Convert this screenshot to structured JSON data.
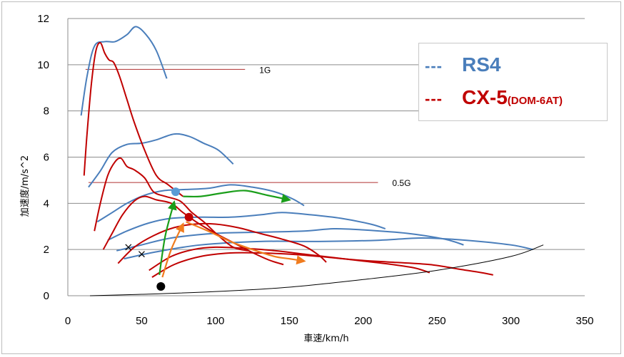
{
  "chart_data": {
    "type": "line",
    "xlabel": "車速/km/h",
    "ylabel": "加速度/m/s^2",
    "xlim": [
      0,
      350
    ],
    "ylim": [
      0,
      12
    ],
    "xticks": [
      "0",
      "50",
      "100",
      "150",
      "200",
      "250",
      "300",
      "350"
    ],
    "yticks": [
      "0",
      "2",
      "4",
      "6",
      "8",
      "10",
      "12"
    ],
    "grid": "horizontal",
    "legend_position": "top-right",
    "legend": [
      {
        "marker": "---",
        "name": "RS4",
        "sub": "",
        "color": "#4a7ebb"
      },
      {
        "marker": "---",
        "name": "CX-5",
        "sub": "(DOM-6AT)",
        "color": "#c00000"
      }
    ],
    "reference_lines": [
      {
        "label": "1G",
        "y": 9.8,
        "x": [
          12,
          120
        ]
      },
      {
        "label": "0.5G",
        "y": 4.9,
        "x": [
          14,
          210
        ]
      }
    ],
    "series": [
      {
        "group": "RS4",
        "color": "#4a7ebb",
        "points": [
          [
            9,
            7.8
          ],
          [
            13,
            9.5
          ],
          [
            18,
            10.8
          ],
          [
            25,
            11
          ],
          [
            32,
            11
          ],
          [
            40,
            11.3
          ],
          [
            46,
            11.65
          ],
          [
            53,
            11.3
          ],
          [
            60,
            10.6
          ],
          [
            67,
            9.4
          ]
        ]
      },
      {
        "group": "RS4",
        "color": "#4a7ebb",
        "points": [
          [
            14,
            4.7
          ],
          [
            22,
            5.4
          ],
          [
            30,
            6.2
          ],
          [
            40,
            6.55
          ],
          [
            50,
            6.6
          ],
          [
            60,
            6.75
          ],
          [
            72,
            7.0
          ],
          [
            82,
            6.9
          ],
          [
            92,
            6.6
          ],
          [
            102,
            6.3
          ],
          [
            112,
            5.7
          ]
        ]
      },
      {
        "group": "RS4",
        "color": "#4a7ebb",
        "points": [
          [
            20,
            3.2
          ],
          [
            30,
            3.6
          ],
          [
            40,
            4.0
          ],
          [
            52,
            4.35
          ],
          [
            65,
            4.55
          ],
          [
            80,
            4.6
          ],
          [
            95,
            4.65
          ],
          [
            110,
            4.8
          ],
          [
            125,
            4.7
          ],
          [
            140,
            4.5
          ],
          [
            152,
            4.2
          ],
          [
            160,
            3.9
          ]
        ]
      },
      {
        "group": "RS4",
        "color": "#4a7ebb",
        "points": [
          [
            27,
            2.4
          ],
          [
            40,
            2.8
          ],
          [
            55,
            3.15
          ],
          [
            70,
            3.35
          ],
          [
            90,
            3.4
          ],
          [
            110,
            3.4
          ],
          [
            130,
            3.5
          ],
          [
            145,
            3.6
          ],
          [
            165,
            3.5
          ],
          [
            185,
            3.35
          ],
          [
            205,
            3.1
          ],
          [
            215,
            2.9
          ]
        ]
      },
      {
        "group": "RS4",
        "color": "#4a7ebb",
        "points": [
          [
            33,
            1.95
          ],
          [
            50,
            2.2
          ],
          [
            70,
            2.5
          ],
          [
            100,
            2.7
          ],
          [
            130,
            2.75
          ],
          [
            160,
            2.8
          ],
          [
            180,
            2.9
          ],
          [
            200,
            2.85
          ],
          [
            230,
            2.7
          ],
          [
            255,
            2.45
          ],
          [
            268,
            2.2
          ]
        ]
      },
      {
        "group": "RS4",
        "color": "#4a7ebb",
        "points": [
          [
            38,
            1.6
          ],
          [
            60,
            1.9
          ],
          [
            90,
            2.2
          ],
          [
            130,
            2.35
          ],
          [
            170,
            2.35
          ],
          [
            210,
            2.4
          ],
          [
            240,
            2.5
          ],
          [
            270,
            2.4
          ],
          [
            300,
            2.2
          ],
          [
            315,
            2.0
          ]
        ]
      },
      {
        "group": "CX-5",
        "color": "#c00000",
        "points": [
          [
            11,
            5.2
          ],
          [
            13,
            7.0
          ],
          [
            16,
            9.2
          ],
          [
            19,
            10.6
          ],
          [
            22,
            10.95
          ],
          [
            25,
            10.5
          ],
          [
            28,
            10.2
          ],
          [
            31,
            10.1
          ],
          [
            35,
            9.5
          ],
          [
            40,
            8.5
          ],
          [
            45,
            7.5
          ],
          [
            52,
            6.3
          ],
          [
            60,
            5.2
          ],
          [
            68,
            4.8
          ],
          [
            78,
            4.3
          ]
        ]
      },
      {
        "group": "CX-5",
        "color": "#c00000",
        "points": [
          [
            18,
            2.8
          ],
          [
            22,
            4.0
          ],
          [
            27,
            5.2
          ],
          [
            32,
            5.8
          ],
          [
            36,
            5.95
          ],
          [
            40,
            5.6
          ],
          [
            45,
            5.45
          ],
          [
            52,
            5.1
          ],
          [
            58,
            4.5
          ],
          [
            66,
            4.3
          ],
          [
            76,
            4.1
          ],
          [
            84,
            3.6
          ],
          [
            92,
            3.2
          ],
          [
            102,
            2.6
          ],
          [
            112,
            2.1
          ],
          [
            122,
            1.95
          ]
        ]
      },
      {
        "group": "CX-5",
        "color": "#c00000",
        "points": [
          [
            24,
            2.0
          ],
          [
            30,
            2.7
          ],
          [
            37,
            3.5
          ],
          [
            45,
            4.1
          ],
          [
            52,
            4.3
          ],
          [
            60,
            4.15
          ],
          [
            70,
            4.0
          ],
          [
            78,
            3.6
          ],
          [
            88,
            3.15
          ],
          [
            100,
            2.7
          ],
          [
            112,
            2.3
          ],
          [
            124,
            1.9
          ],
          [
            136,
            1.55
          ],
          [
            146,
            1.35
          ]
        ]
      },
      {
        "group": "CX-5",
        "color": "#c00000",
        "points": [
          [
            34,
            1.4
          ],
          [
            45,
            2.1
          ],
          [
            58,
            2.6
          ],
          [
            72,
            2.95
          ],
          [
            86,
            3.1
          ],
          [
            100,
            3.1
          ],
          [
            115,
            2.95
          ],
          [
            130,
            2.7
          ],
          [
            145,
            2.45
          ],
          [
            160,
            2.15
          ],
          [
            170,
            1.75
          ],
          [
            175,
            1.45
          ]
        ]
      },
      {
        "group": "CX-5",
        "color": "#c00000",
        "points": [
          [
            55,
            1.1
          ],
          [
            70,
            1.7
          ],
          [
            85,
            2.0
          ],
          [
            100,
            2.1
          ],
          [
            120,
            2.05
          ],
          [
            140,
            1.95
          ],
          [
            160,
            1.8
          ],
          [
            180,
            1.65
          ],
          [
            200,
            1.5
          ],
          [
            220,
            1.35
          ],
          [
            235,
            1.2
          ],
          [
            245,
            1.0
          ]
        ]
      },
      {
        "group": "CX-5",
        "color": "#c00000",
        "points": [
          [
            57,
            0.8
          ],
          [
            72,
            1.35
          ],
          [
            90,
            1.7
          ],
          [
            110,
            1.85
          ],
          [
            130,
            1.85
          ],
          [
            150,
            1.8
          ],
          [
            170,
            1.7
          ],
          [
            195,
            1.55
          ],
          [
            220,
            1.45
          ],
          [
            245,
            1.35
          ],
          [
            265,
            1.15
          ],
          [
            280,
            1.0
          ],
          [
            288,
            0.9
          ]
        ]
      },
      {
        "group": "resistance",
        "color": "#000000",
        "points": [
          [
            15,
            0.0
          ],
          [
            50,
            0.06
          ],
          [
            100,
            0.18
          ],
          [
            150,
            0.37
          ],
          [
            200,
            0.7
          ],
          [
            250,
            1.1
          ],
          [
            300,
            1.7
          ],
          [
            322,
            2.2
          ]
        ]
      }
    ],
    "arrows": [
      {
        "color": "#1a9e1a",
        "points": [
          [
            62,
            0.9
          ],
          [
            66,
            2.6
          ],
          [
            72,
            4.05
          ]
        ]
      },
      {
        "color": "#1a9e1a",
        "points": [
          [
            78,
            4.3
          ],
          [
            90,
            4.3
          ],
          [
            105,
            4.45
          ],
          [
            120,
            4.55
          ],
          [
            135,
            4.35
          ],
          [
            150,
            4.15
          ]
        ]
      },
      {
        "color": "#f07c1e",
        "points": [
          [
            64,
            0.8
          ],
          [
            70,
            2.0
          ],
          [
            78,
            3.1
          ]
        ]
      },
      {
        "color": "#f07c1e",
        "points": [
          [
            80,
            3.2
          ],
          [
            95,
            2.8
          ],
          [
            110,
            2.35
          ],
          [
            125,
            2.0
          ],
          [
            140,
            1.7
          ],
          [
            150,
            1.6
          ],
          [
            160,
            1.5
          ]
        ]
      }
    ],
    "markers": [
      {
        "shape": "circle",
        "x": 73,
        "y": 4.5,
        "color": "#5b9bd5"
      },
      {
        "shape": "circle",
        "x": 82,
        "y": 3.4,
        "color": "#c00000"
      },
      {
        "shape": "circle",
        "x": 63,
        "y": 0.4,
        "color": "#000000"
      },
      {
        "shape": "cross",
        "x": 41,
        "y": 2.1,
        "color": "#000000"
      },
      {
        "shape": "cross",
        "x": 50,
        "y": 1.8,
        "color": "#000000"
      }
    ]
  }
}
